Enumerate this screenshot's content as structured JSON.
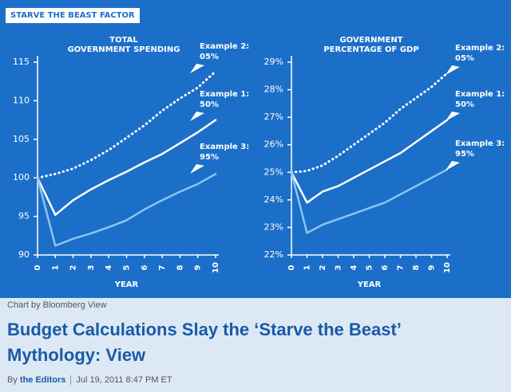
{
  "badge": "STARVE THE BEAST FACTOR",
  "chart_data": [
    {
      "type": "line",
      "title": "TOTAL\nGOVERNMENT SPENDING",
      "xlabel": "YEAR",
      "x": [
        0,
        1,
        2,
        3,
        4,
        5,
        6,
        7,
        8,
        9,
        10
      ],
      "xlim": [
        0,
        10
      ],
      "xticks": [
        0,
        1,
        2,
        3,
        4,
        5,
        6,
        7,
        8,
        9,
        10
      ],
      "ylim": [
        90,
        115
      ],
      "yticks": [
        90,
        95,
        100,
        105,
        110,
        115
      ],
      "series": [
        {
          "name": "Example 2:",
          "rate": "05%",
          "color": "#ffffff",
          "style": "dotted",
          "values": [
            100,
            100.5,
            101.2,
            102.3,
            103.6,
            105.2,
            106.8,
            108.7,
            110.3,
            111.7,
            113.8
          ]
        },
        {
          "name": "Example 1:",
          "rate": "50%",
          "color": "#ffffff",
          "style": "solid",
          "values": [
            100,
            95.2,
            97.1,
            98.5,
            99.7,
            100.8,
            102.0,
            103.1,
            104.5,
            105.9,
            107.5
          ]
        },
        {
          "name": "Example 3:",
          "rate": "95%",
          "color": "#8ec3f0",
          "style": "solid",
          "values": [
            100,
            91.2,
            92.1,
            92.8,
            93.6,
            94.5,
            95.9,
            97.1,
            98.2,
            99.2,
            100.5
          ]
        }
      ]
    },
    {
      "type": "line",
      "title": "GOVERNMENT\nPERCENTAGE OF GDP",
      "xlabel": "YEAR",
      "x": [
        0,
        1,
        2,
        3,
        4,
        5,
        6,
        7,
        8,
        9,
        10
      ],
      "xlim": [
        0,
        10
      ],
      "xticks": [
        0,
        1,
        2,
        3,
        4,
        5,
        6,
        7,
        8,
        9,
        10
      ],
      "ylim": [
        22,
        29
      ],
      "yticks": [
        {
          "value": 22,
          "label": "22%"
        },
        {
          "value": 23,
          "label": "23%"
        },
        {
          "value": 24,
          "label": "24%"
        },
        {
          "value": 25,
          "label": "25%"
        },
        {
          "value": 26,
          "label": "26%"
        },
        {
          "value": 27,
          "label": "27%"
        },
        {
          "value": 28,
          "label": "28%"
        },
        {
          "value": 29,
          "label": "29%"
        }
      ],
      "series": [
        {
          "name": "Example 2:",
          "rate": "05%",
          "color": "#ffffff",
          "style": "dotted",
          "values": [
            25,
            25.05,
            25.25,
            25.6,
            26.0,
            26.4,
            26.8,
            27.3,
            27.7,
            28.1,
            28.6
          ]
        },
        {
          "name": "Example 1:",
          "rate": "50%",
          "color": "#ffffff",
          "style": "solid",
          "values": [
            25,
            23.9,
            24.3,
            24.5,
            24.8,
            25.1,
            25.4,
            25.7,
            26.1,
            26.5,
            26.9
          ]
        },
        {
          "name": "Example 3:",
          "rate": "95%",
          "color": "#8ec3f0",
          "style": "solid",
          "values": [
            25,
            22.8,
            23.1,
            23.3,
            23.5,
            23.7,
            23.9,
            24.2,
            24.5,
            24.8,
            25.1
          ]
        }
      ]
    }
  ],
  "caption": "Chart by Bloomberg View",
  "headline": "Budget Calculations Slay the ‘Starve the Beast’ Mythology: View",
  "byline": {
    "prefix": "By",
    "author": "the Editors",
    "date": "Jul 19, 2011 8:47 PM ET"
  }
}
